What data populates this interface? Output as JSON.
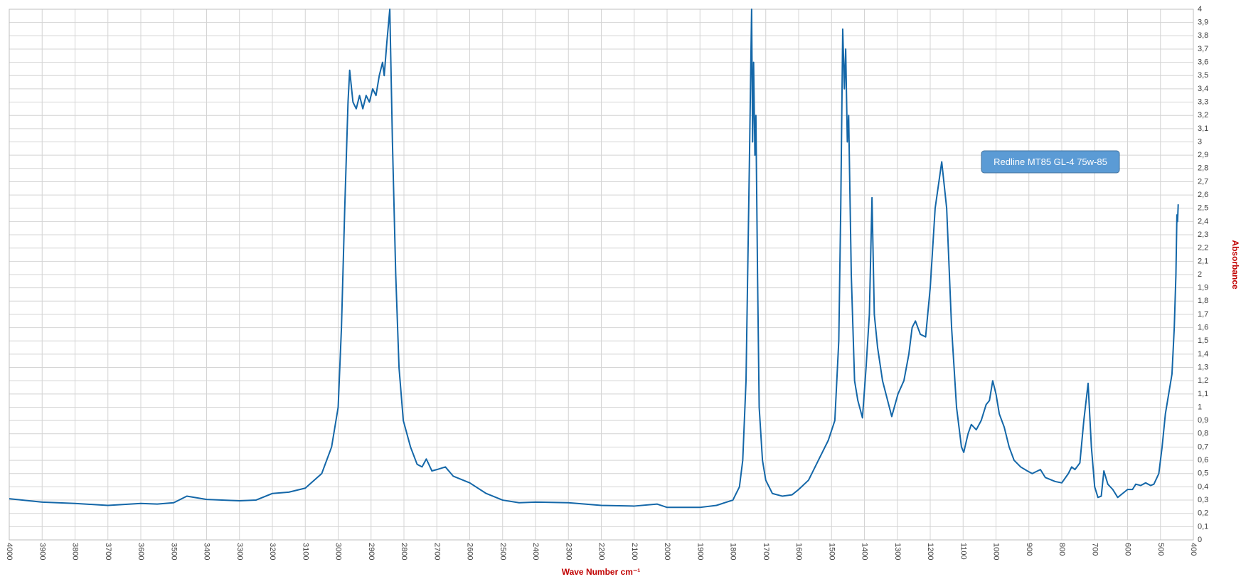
{
  "chart_data": {
    "type": "line",
    "xlabel": "Wave Number cm⁻¹",
    "ylabel": "Absorbance",
    "annotation": "Redline MT85  GL-4 75w-85",
    "xlim": [
      4000,
      400
    ],
    "xticks": [
      4000,
      3900,
      3800,
      3700,
      3600,
      3500,
      3400,
      3300,
      3200,
      3100,
      3000,
      2900,
      2800,
      2700,
      2600,
      2500,
      2400,
      2300,
      2200,
      2100,
      2000,
      1900,
      1800,
      1700,
      1600,
      1500,
      1400,
      1300,
      1200,
      1100,
      1000,
      900,
      800,
      700,
      600,
      500,
      400
    ],
    "ylim": [
      0,
      4
    ],
    "yticks": [
      0,
      {
        "value": 0.1,
        "label": "0,1"
      },
      {
        "value": 0.2,
        "label": "0,2"
      },
      {
        "value": 0.3,
        "label": "0,3"
      },
      {
        "value": 0.4,
        "label": "0,4"
      },
      {
        "value": 0.5,
        "label": "0,5"
      },
      {
        "value": 0.6,
        "label": "0,6"
      },
      {
        "value": 0.7,
        "label": "0,7"
      },
      {
        "value": 0.8,
        "label": "0,8"
      },
      {
        "value": 0.9,
        "label": "0,9"
      },
      1,
      {
        "value": 1.1,
        "label": "1,1"
      },
      {
        "value": 1.2,
        "label": "1,2"
      },
      {
        "value": 1.3,
        "label": "1,3"
      },
      {
        "value": 1.4,
        "label": "1,4"
      },
      {
        "value": 1.5,
        "label": "1,5"
      },
      {
        "value": 1.6,
        "label": "1,6"
      },
      {
        "value": 1.7,
        "label": "1,7"
      },
      {
        "value": 1.8,
        "label": "1,8"
      },
      {
        "value": 1.9,
        "label": "1,9"
      },
      2,
      {
        "value": 2.1,
        "label": "2,1"
      },
      {
        "value": 2.2,
        "label": "2,2"
      },
      {
        "value": 2.3,
        "label": "2,3"
      },
      {
        "value": 2.4,
        "label": "2,4"
      },
      {
        "value": 2.5,
        "label": "2,5"
      },
      {
        "value": 2.6,
        "label": "2,6"
      },
      {
        "value": 2.7,
        "label": "2,7"
      },
      {
        "value": 2.8,
        "label": "2,8"
      },
      {
        "value": 2.9,
        "label": "2,9"
      },
      3,
      {
        "value": 3.1,
        "label": "3,1"
      },
      {
        "value": 3.2,
        "label": "3,2"
      },
      {
        "value": 3.3,
        "label": "3,3"
      },
      {
        "value": 3.4,
        "label": "3,4"
      },
      {
        "value": 3.5,
        "label": "3,5"
      },
      {
        "value": 3.6,
        "label": "3,6"
      },
      {
        "value": 3.7,
        "label": "3,7"
      },
      {
        "value": 3.8,
        "label": "3,8"
      },
      {
        "value": 3.9,
        "label": "3,9"
      },
      4
    ],
    "grid": true,
    "x": [
      4000,
      3900,
      3800,
      3700,
      3600,
      3550,
      3500,
      3460,
      3400,
      3300,
      3250,
      3200,
      3150,
      3100,
      3050,
      3020,
      3000,
      2990,
      2980,
      2970,
      2965,
      2955,
      2945,
      2935,
      2925,
      2915,
      2905,
      2895,
      2885,
      2875,
      2865,
      2860,
      2852,
      2843,
      2835,
      2825,
      2815,
      2802,
      2780,
      2760,
      2745,
      2732,
      2715,
      2700,
      2674,
      2650,
      2600,
      2550,
      2500,
      2450,
      2400,
      2300,
      2200,
      2100,
      2030,
      2000,
      1900,
      1850,
      1800,
      1780,
      1770,
      1760,
      1750,
      1743,
      1740,
      1737,
      1733,
      1730,
      1725,
      1720,
      1710,
      1700,
      1680,
      1650,
      1620,
      1600,
      1570,
      1540,
      1510,
      1490,
      1478,
      1472,
      1466,
      1461,
      1457,
      1452,
      1448,
      1440,
      1430,
      1420,
      1406,
      1395,
      1385,
      1377,
      1370,
      1360,
      1345,
      1317,
      1298,
      1280,
      1265,
      1255,
      1245,
      1230,
      1214,
      1200,
      1185,
      1165,
      1150,
      1135,
      1120,
      1105,
      1098,
      1085,
      1075,
      1060,
      1045,
      1030,
      1020,
      1010,
      1000,
      990,
      975,
      960,
      945,
      925,
      905,
      890,
      865,
      850,
      820,
      800,
      780,
      770,
      760,
      745,
      733,
      720,
      710,
      700,
      690,
      680,
      672,
      660,
      645,
      630,
      615,
      600,
      585,
      575,
      560,
      545,
      530,
      520,
      505,
      495,
      485,
      475,
      465,
      458,
      453,
      450,
      448,
      446
    ],
    "series": [
      {
        "name": "Redline MT85  GL-4 75w-85",
        "color": "#1467a8",
        "values": [
          0.31,
          0.285,
          0.275,
          0.26,
          0.275,
          0.27,
          0.28,
          0.33,
          0.305,
          0.295,
          0.3,
          0.35,
          0.36,
          0.39,
          0.5,
          0.7,
          1.0,
          1.6,
          2.5,
          3.3,
          3.54,
          3.3,
          3.25,
          3.35,
          3.25,
          3.35,
          3.3,
          3.4,
          3.35,
          3.5,
          3.6,
          3.5,
          3.75,
          4.0,
          3.0,
          2.0,
          1.3,
          0.9,
          0.7,
          0.57,
          0.55,
          0.61,
          0.52,
          0.53,
          0.55,
          0.48,
          0.43,
          0.35,
          0.3,
          0.28,
          0.285,
          0.28,
          0.26,
          0.255,
          0.27,
          0.245,
          0.245,
          0.26,
          0.3,
          0.4,
          0.6,
          1.2,
          2.8,
          4.0,
          3.0,
          3.6,
          2.9,
          3.2,
          2.0,
          1.0,
          0.6,
          0.45,
          0.35,
          0.33,
          0.34,
          0.38,
          0.45,
          0.6,
          0.75,
          0.9,
          1.5,
          2.5,
          3.85,
          3.4,
          3.7,
          3.0,
          3.2,
          2.0,
          1.2,
          1.05,
          0.92,
          1.3,
          1.7,
          2.58,
          1.7,
          1.45,
          1.2,
          0.93,
          1.1,
          1.2,
          1.4,
          1.6,
          1.65,
          1.55,
          1.53,
          1.9,
          2.5,
          2.85,
          2.5,
          1.6,
          1.0,
          0.7,
          0.66,
          0.8,
          0.87,
          0.83,
          0.9,
          1.02,
          1.05,
          1.2,
          1.1,
          0.95,
          0.85,
          0.7,
          0.6,
          0.55,
          0.52,
          0.5,
          0.53,
          0.47,
          0.44,
          0.43,
          0.5,
          0.55,
          0.53,
          0.58,
          0.9,
          1.18,
          0.7,
          0.4,
          0.32,
          0.33,
          0.52,
          0.42,
          0.38,
          0.32,
          0.35,
          0.38,
          0.38,
          0.42,
          0.41,
          0.43,
          0.41,
          0.42,
          0.5,
          0.7,
          0.95,
          1.1,
          1.25,
          1.6,
          2.0,
          2.45,
          2.4,
          2.53
        ]
      }
    ]
  }
}
